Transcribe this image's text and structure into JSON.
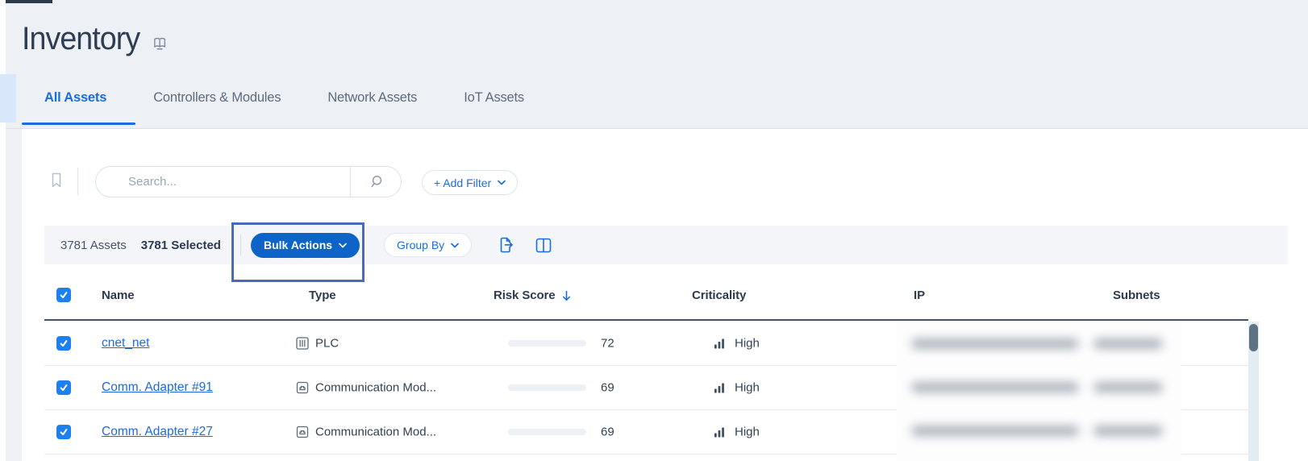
{
  "header": {
    "title": "Inventory",
    "title_icon": "open-book-icon"
  },
  "tabs": [
    {
      "label": "All Assets",
      "active": true
    },
    {
      "label": "Controllers & Modules",
      "active": false
    },
    {
      "label": "Network Assets",
      "active": false
    },
    {
      "label": "IoT Assets",
      "active": false
    }
  ],
  "filter_bar": {
    "search_placeholder": "Search...",
    "add_filter_label": "+ Add Filter"
  },
  "toolbar": {
    "assets_count": "3781 Assets",
    "selected_count": "3781 Selected",
    "bulk_actions_label": "Bulk Actions",
    "group_by_label": "Group By"
  },
  "annotation": {
    "shape": "rectangle-highlight",
    "color": "#4a69bd"
  },
  "table": {
    "headers": [
      "Name",
      "Type",
      "Risk Score",
      "Criticality",
      "IP",
      "Subnets"
    ],
    "sorted_by": "Risk Score",
    "sort_direction": "descending",
    "rows": [
      {
        "selected": true,
        "name": "cnet_net",
        "type": "PLC",
        "type_icon": "plc-icon",
        "risk_score": 72,
        "risk_color": "#dc1a5e",
        "criticality": "High",
        "ip_blurred": true,
        "subnets_blurred": true
      },
      {
        "selected": true,
        "name": "Comm. Adapter #91",
        "type": "Communication Mod...",
        "type_icon": "comm-module-icon",
        "risk_score": 69,
        "risk_color": "#f8a928",
        "criticality": "High",
        "ip_blurred": true,
        "subnets_blurred": true
      },
      {
        "selected": true,
        "name": "Comm. Adapter #27",
        "type": "Communication Mod...",
        "type_icon": "comm-module-icon",
        "risk_score": 69,
        "risk_color": "#f8a928",
        "criticality": "High",
        "ip_blurred": true,
        "subnets_blurred": true
      }
    ]
  },
  "colors": {
    "accent_blue": "#1b6ce0",
    "bulk_button_blue": "#0e63c8",
    "risk_high": "#dc1a5e",
    "risk_medium": "#f8a928",
    "toolbar_gray": "#f3f5f8",
    "header_border": "#42536a"
  }
}
